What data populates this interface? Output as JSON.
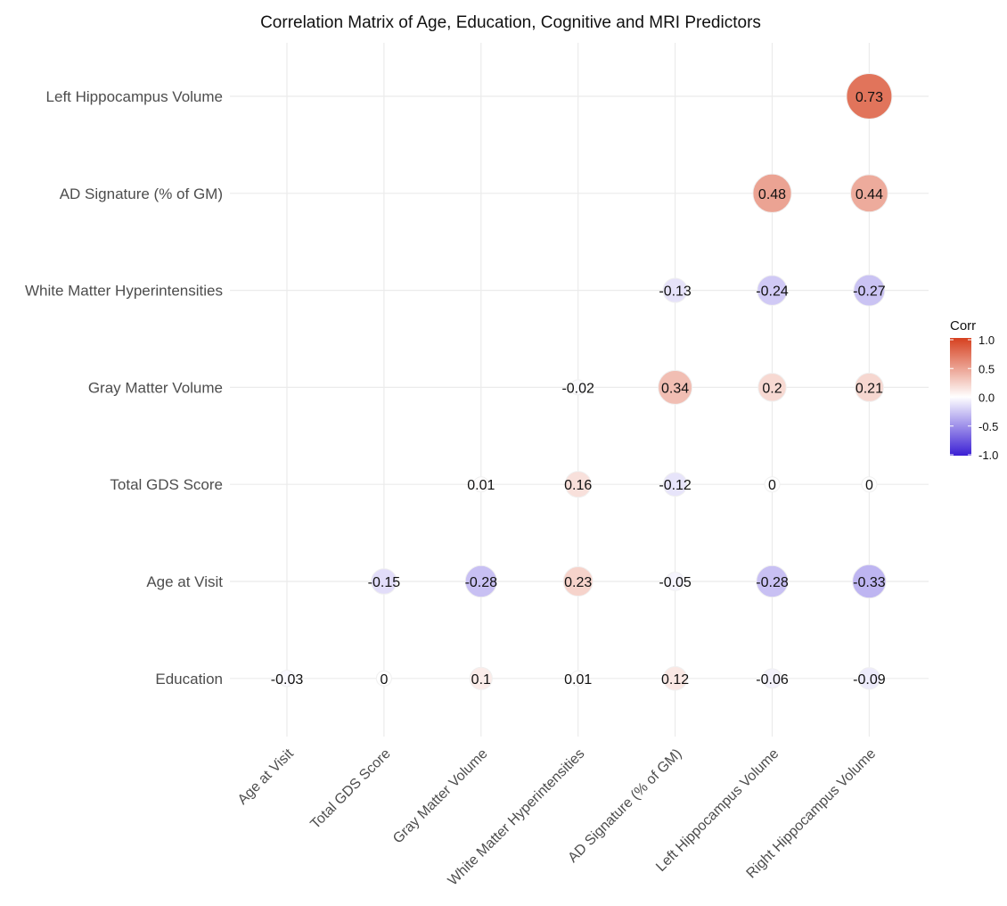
{
  "chart_data": {
    "type": "heatmap",
    "title": "Correlation Matrix of Age, Education, Cognitive and MRI Predictors",
    "x_categories": [
      "Age at Visit",
      "Total GDS Score",
      "Gray Matter Volume",
      "White Matter Hyperintensities",
      "AD Signature (% of GM)",
      "Left Hippocampus Volume",
      "Right Hippocampus Volume"
    ],
    "y_categories": [
      "Education",
      "Age at Visit",
      "Total GDS Score",
      "Gray Matter Volume",
      "White Matter Hyperintensities",
      "AD Signature (% of GM)",
      "Left Hippocampus Volume"
    ],
    "cells": [
      {
        "x": "Age at Visit",
        "y": "Education",
        "value": -0.03,
        "label": "-0.03"
      },
      {
        "x": "Total GDS Score",
        "y": "Education",
        "value": 0,
        "label": "0"
      },
      {
        "x": "Gray Matter Volume",
        "y": "Education",
        "value": 0.1,
        "label": "0.1"
      },
      {
        "x": "White Matter Hyperintensities",
        "y": "Education",
        "value": 0.01,
        "label": "0.01"
      },
      {
        "x": "AD Signature (% of GM)",
        "y": "Education",
        "value": 0.12,
        "label": "0.12"
      },
      {
        "x": "Left Hippocampus Volume",
        "y": "Education",
        "value": -0.06,
        "label": "-0.06"
      },
      {
        "x": "Right Hippocampus Volume",
        "y": "Education",
        "value": -0.09,
        "label": "-0.09"
      },
      {
        "x": "Total GDS Score",
        "y": "Age at Visit",
        "value": -0.15,
        "label": "-0.15"
      },
      {
        "x": "Gray Matter Volume",
        "y": "Age at Visit",
        "value": -0.28,
        "label": "-0.28"
      },
      {
        "x": "White Matter Hyperintensities",
        "y": "Age at Visit",
        "value": 0.23,
        "label": "0.23"
      },
      {
        "x": "AD Signature (% of GM)",
        "y": "Age at Visit",
        "value": -0.05,
        "label": "-0.05"
      },
      {
        "x": "Left Hippocampus Volume",
        "y": "Age at Visit",
        "value": -0.28,
        "label": "-0.28"
      },
      {
        "x": "Right Hippocampus Volume",
        "y": "Age at Visit",
        "value": -0.33,
        "label": "-0.33"
      },
      {
        "x": "Gray Matter Volume",
        "y": "Total GDS Score",
        "value": 0.01,
        "label": "0.01"
      },
      {
        "x": "White Matter Hyperintensities",
        "y": "Total GDS Score",
        "value": 0.16,
        "label": "0.16"
      },
      {
        "x": "AD Signature (% of GM)",
        "y": "Total GDS Score",
        "value": -0.12,
        "label": "-0.12"
      },
      {
        "x": "Left Hippocampus Volume",
        "y": "Total GDS Score",
        "value": 0,
        "label": "0"
      },
      {
        "x": "Right Hippocampus Volume",
        "y": "Total GDS Score",
        "value": 0,
        "label": "0"
      },
      {
        "x": "White Matter Hyperintensities",
        "y": "Gray Matter Volume",
        "value": -0.02,
        "label": "-0.02"
      },
      {
        "x": "AD Signature (% of GM)",
        "y": "Gray Matter Volume",
        "value": 0.34,
        "label": "0.34"
      },
      {
        "x": "Left Hippocampus Volume",
        "y": "Gray Matter Volume",
        "value": 0.2,
        "label": "0.2"
      },
      {
        "x": "Right Hippocampus Volume",
        "y": "Gray Matter Volume",
        "value": 0.21,
        "label": "0.21"
      },
      {
        "x": "AD Signature (% of GM)",
        "y": "White Matter Hyperintensities",
        "value": -0.13,
        "label": "-0.13"
      },
      {
        "x": "Left Hippocampus Volume",
        "y": "White Matter Hyperintensities",
        "value": -0.24,
        "label": "-0.24"
      },
      {
        "x": "Right Hippocampus Volume",
        "y": "White Matter Hyperintensities",
        "value": -0.27,
        "label": "-0.27"
      },
      {
        "x": "Left Hippocampus Volume",
        "y": "AD Signature (% of GM)",
        "value": 0.48,
        "label": "0.48"
      },
      {
        "x": "Right Hippocampus Volume",
        "y": "AD Signature (% of GM)",
        "value": 0.44,
        "label": "0.44"
      },
      {
        "x": "Right Hippocampus Volume",
        "y": "Left Hippocampus Volume",
        "value": 0.73,
        "label": "0.73"
      }
    ],
    "legend": {
      "title": "Corr",
      "placement": "right",
      "ticks": [
        1.0,
        0.5,
        0.0,
        -0.5,
        -1.0
      ],
      "tick_labels": [
        "1.0",
        "0.5",
        "0.0",
        "-0.5",
        "-1.0"
      ],
      "limits": [
        -1,
        1
      ],
      "colors": {
        "low": "#3b1fd4",
        "mid": "#ffffff",
        "high": "#d6401f"
      }
    },
    "grid": true
  }
}
